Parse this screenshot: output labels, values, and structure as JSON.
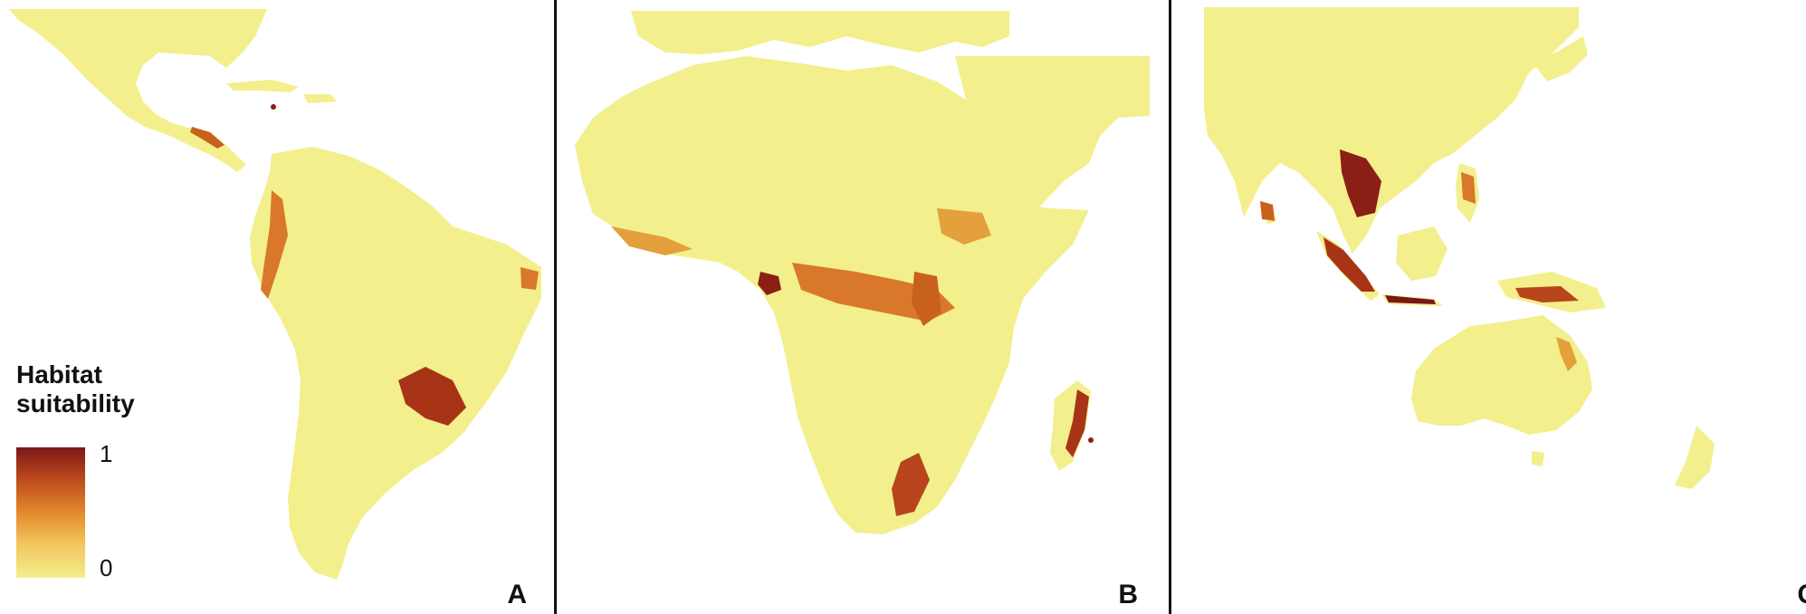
{
  "figure": {
    "panels": [
      {
        "id": "A",
        "label": "A",
        "region": "Americas"
      },
      {
        "id": "B",
        "label": "B",
        "region": "Africa"
      },
      {
        "id": "C",
        "label": "C",
        "region": "South and Southeast Asia, Australia"
      }
    ],
    "legend": {
      "title_line1": "Habitat",
      "title_line2": "suitability",
      "max_label": "1",
      "min_label": "0",
      "scale_min": 0,
      "scale_max": 1
    },
    "colors": {
      "land_low": "#f3ef8c",
      "mid": "#e3892b",
      "high": "#7a1717",
      "background": "#ffffff",
      "divider": "#111111"
    }
  }
}
